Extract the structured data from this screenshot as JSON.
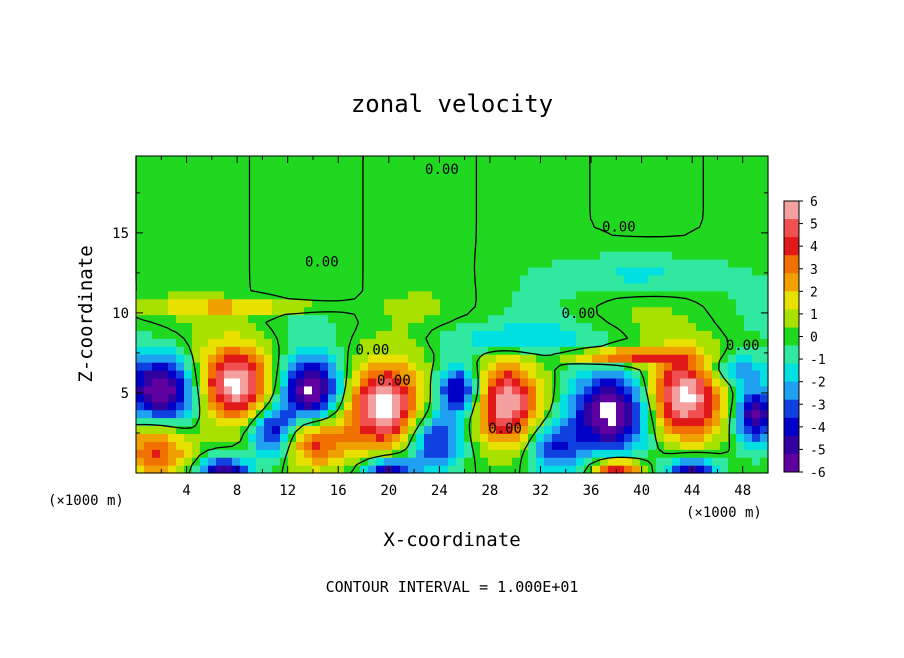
{
  "chart_data": {
    "type": "heatmap",
    "title": "zonal velocity",
    "xlabel": "X-coordinate",
    "ylabel": "Z-coordinate",
    "x_unit_left": "(×1000 m)",
    "x_unit_right": "(×1000 m)",
    "xlim": [
      0,
      50
    ],
    "ylim": [
      0,
      19.8
    ],
    "x_ticks": [
      4,
      8,
      12,
      16,
      20,
      24,
      28,
      32,
      36,
      40,
      44,
      48
    ],
    "y_ticks": [
      5,
      10,
      15
    ],
    "colorbar": {
      "ticks": [
        "6",
        "5",
        "4",
        "3",
        "2",
        "1",
        "0",
        "-1",
        "-2",
        "-3",
        "-4",
        "-5",
        "-6"
      ],
      "range": [
        -6,
        6
      ],
      "colors": [
        "#f4a0a0",
        "#f05050",
        "#e01818",
        "#f07000",
        "#f0a000",
        "#e8e000",
        "#a8e000",
        "#20d820",
        "#30e8a0",
        "#00e0e0",
        "#20a0f0",
        "#1040e0",
        "#0000c8",
        "#3000a0",
        "#6000a0"
      ]
    },
    "contour_labels": [
      {
        "text": "0.00",
        "x": 24.2,
        "y": 19.0
      },
      {
        "text": "0.00",
        "x": 38.2,
        "y": 15.4
      },
      {
        "text": "0.00",
        "x": 14.7,
        "y": 13.2
      },
      {
        "text": "0.00",
        "x": 35.0,
        "y": 10.0
      },
      {
        "text": "0.00",
        "x": 18.7,
        "y": 7.7
      },
      {
        "text": "0.00",
        "x": 20.4,
        "y": 5.8
      },
      {
        "text": "0.00",
        "x": 29.2,
        "y": 2.8
      },
      {
        "text": "0.00",
        "x": 48.0,
        "y": 8.0
      }
    ],
    "blobs": [
      {
        "x": 2.0,
        "y": 5.0,
        "rx": 3.0,
        "ry": 2.4,
        "v": -6.5
      },
      {
        "x": 1.6,
        "y": 1.8,
        "rx": 2.6,
        "ry": 2.0,
        "v": 4.5
      },
      {
        "x": 7.8,
        "y": 5.6,
        "rx": 3.0,
        "ry": 2.3,
        "v": 6.5
      },
      {
        "x": 13.8,
        "y": 5.2,
        "rx": 2.5,
        "ry": 2.0,
        "v": -6.5
      },
      {
        "x": 14.2,
        "y": 2.0,
        "rx": 2.6,
        "ry": 1.6,
        "v": 4.0
      },
      {
        "x": 10.8,
        "y": 2.6,
        "rx": 1.8,
        "ry": 1.6,
        "v": -4.5
      },
      {
        "x": 19.6,
        "y": 4.2,
        "rx": 3.0,
        "ry": 2.6,
        "v": 6.5
      },
      {
        "x": 25.5,
        "y": 5.2,
        "rx": 1.8,
        "ry": 1.6,
        "v": -5.0
      },
      {
        "x": 29.4,
        "y": 4.4,
        "rx": 2.6,
        "ry": 2.6,
        "v": 6.0
      },
      {
        "x": 23.6,
        "y": 2.0,
        "rx": 2.2,
        "ry": 1.8,
        "v": -4.0
      },
      {
        "x": 37.6,
        "y": 3.8,
        "rx": 3.2,
        "ry": 2.6,
        "v": -6.5
      },
      {
        "x": 43.4,
        "y": 4.8,
        "rx": 3.0,
        "ry": 2.6,
        "v": 6.5
      },
      {
        "x": 49.0,
        "y": 3.6,
        "rx": 1.6,
        "ry": 1.8,
        "v": -5.5
      },
      {
        "x": 33.0,
        "y": 1.6,
        "rx": 2.2,
        "ry": 1.6,
        "v": -3.5
      },
      {
        "x": 38.4,
        "y": 7.3,
        "rx": 4.0,
        "ry": 0.5,
        "v": 4.5
      },
      {
        "x": 8.0,
        "y": 10.4,
        "rx": 7.0,
        "ry": 0.4,
        "v": 2.5
      },
      {
        "x": 47.5,
        "y": 6.4,
        "rx": 2.6,
        "ry": 1.0,
        "v": -2.5
      },
      {
        "x": 30.0,
        "y": 8.4,
        "rx": 6.0,
        "ry": 1.0,
        "v": -2.0
      },
      {
        "x": 40.0,
        "y": 12.4,
        "rx": 6.0,
        "ry": 1.2,
        "v": -1.6
      },
      {
        "x": 7.0,
        "y": 0.2,
        "rx": 2.0,
        "ry": 0.8,
        "v": -5.0
      },
      {
        "x": 20.0,
        "y": 0.2,
        "rx": 2.0,
        "ry": 0.8,
        "v": -5.0
      },
      {
        "x": 38.0,
        "y": 0.2,
        "rx": 2.0,
        "ry": 0.8,
        "v": 5.0
      },
      {
        "x": 44.0,
        "y": 0.2,
        "rx": 2.0,
        "ry": 0.8,
        "v": -5.0
      }
    ]
  },
  "footer": "CONTOUR INTERVAL = 1.000E+01"
}
